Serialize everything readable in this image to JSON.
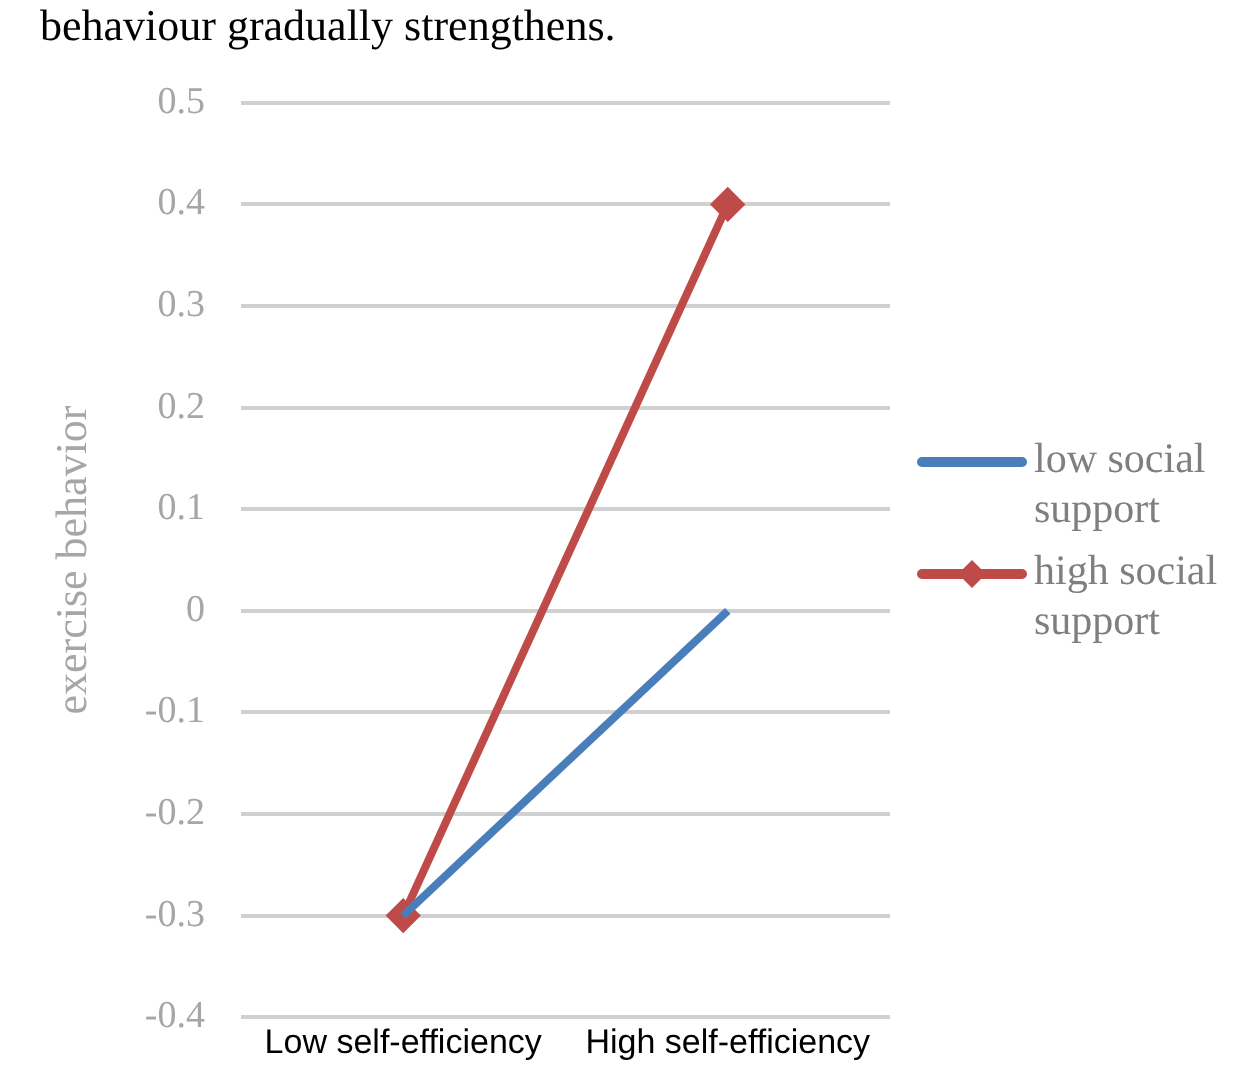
{
  "chart_data": {
    "type": "line",
    "ylabel": "exercise behavior",
    "annotations": [
      "behaviour gradually strengthens."
    ],
    "categories": [
      "Low self-efficiency",
      "High self-efficiency"
    ],
    "series": [
      {
        "name": "low social support",
        "color": "#4a7ebb",
        "values": [
          -0.3,
          0
        ],
        "marker": "none"
      },
      {
        "name": "high social support",
        "color": "#be4b48",
        "values": [
          -0.3,
          0.4
        ],
        "marker": "diamond"
      }
    ],
    "ylim": [
      -0.4,
      0.5
    ],
    "yticks": [
      -0.4,
      -0.3,
      -0.2,
      -0.1,
      0,
      0.1,
      0.2,
      0.3,
      0.4,
      0.5
    ],
    "grid": "y",
    "legend": "right"
  }
}
